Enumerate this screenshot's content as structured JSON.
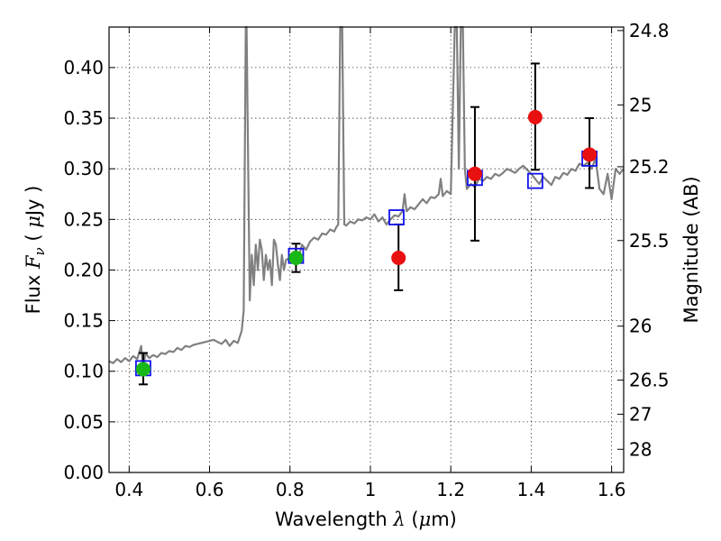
{
  "chart_data": {
    "type": "scatter",
    "xlabel": "Wavelength  λ (μm)",
    "ylabel": "Flux  Fν  ( μJy )",
    "y2label": "Magnitude (AB)",
    "xlim": [
      0.35,
      1.63
    ],
    "ylim": [
      0.0,
      0.44
    ],
    "xticks": [
      0.4,
      0.6,
      0.8,
      1.0,
      1.2,
      1.4,
      1.6
    ],
    "xtick_labels": [
      "0.4",
      "0.6",
      "0.8",
      "1",
      "1.2",
      "1.4",
      "1.6"
    ],
    "yticks": [
      0.0,
      0.05,
      0.1,
      0.15,
      0.2,
      0.25,
      0.3,
      0.35,
      0.4
    ],
    "ytick_labels": [
      "0.00",
      "0.05",
      "0.10",
      "0.15",
      "0.20",
      "0.25",
      "0.30",
      "0.35",
      "0.40"
    ],
    "y2ticks": [
      24.8,
      25.0,
      25.2,
      25.5,
      26.0,
      26.5,
      27.0,
      28.0
    ],
    "y2tick_labels": [
      "24.8",
      "25",
      "25.2",
      "25.5",
      "26",
      "26.5",
      "27",
      "28"
    ],
    "grid": true,
    "colors": {
      "spectrum": "#808080",
      "model_box": "#1010ee",
      "observed_optical": "#18b818",
      "observed_nir": "#e81010",
      "errorbar": "#000000"
    },
    "series": [
      {
        "kind": "spectrum",
        "points": [
          [
            0.35,
            0.11
          ],
          [
            0.36,
            0.108
          ],
          [
            0.37,
            0.112
          ],
          [
            0.38,
            0.109
          ],
          [
            0.39,
            0.113
          ],
          [
            0.4,
            0.11
          ],
          [
            0.41,
            0.115
          ],
          [
            0.42,
            0.112
          ],
          [
            0.43,
            0.125
          ],
          [
            0.435,
            0.098
          ],
          [
            0.44,
            0.118
          ],
          [
            0.45,
            0.113
          ],
          [
            0.46,
            0.116
          ],
          [
            0.47,
            0.114
          ],
          [
            0.48,
            0.118
          ],
          [
            0.49,
            0.117
          ],
          [
            0.5,
            0.12
          ],
          [
            0.51,
            0.119
          ],
          [
            0.52,
            0.123
          ],
          [
            0.53,
            0.121
          ],
          [
            0.54,
            0.125
          ],
          [
            0.55,
            0.124
          ],
          [
            0.56,
            0.126
          ],
          [
            0.57,
            0.127
          ],
          [
            0.58,
            0.128
          ],
          [
            0.59,
            0.129
          ],
          [
            0.6,
            0.13
          ],
          [
            0.61,
            0.131
          ],
          [
            0.62,
            0.129
          ],
          [
            0.63,
            0.127
          ],
          [
            0.64,
            0.131
          ],
          [
            0.65,
            0.125
          ],
          [
            0.66,
            0.13
          ],
          [
            0.67,
            0.128
          ],
          [
            0.68,
            0.14
          ],
          [
            0.685,
            0.16
          ],
          [
            0.69,
            0.44
          ],
          [
            0.692,
            0.44
          ],
          [
            0.7,
            0.17
          ],
          [
            0.705,
            0.215
          ],
          [
            0.71,
            0.185
          ],
          [
            0.715,
            0.225
          ],
          [
            0.72,
            0.2
          ],
          [
            0.725,
            0.23
          ],
          [
            0.73,
            0.22
          ],
          [
            0.735,
            0.19
          ],
          [
            0.74,
            0.215
          ],
          [
            0.745,
            0.2
          ],
          [
            0.75,
            0.21
          ],
          [
            0.755,
            0.185
          ],
          [
            0.76,
            0.23
          ],
          [
            0.765,
            0.225
          ],
          [
            0.77,
            0.205
          ],
          [
            0.775,
            0.19
          ],
          [
            0.78,
            0.215
          ],
          [
            0.785,
            0.2
          ],
          [
            0.79,
            0.21
          ],
          [
            0.8,
            0.212
          ],
          [
            0.81,
            0.218
          ],
          [
            0.82,
            0.21
          ],
          [
            0.83,
            0.225
          ],
          [
            0.84,
            0.22
          ],
          [
            0.85,
            0.228
          ],
          [
            0.86,
            0.232
          ],
          [
            0.87,
            0.23
          ],
          [
            0.88,
            0.236
          ],
          [
            0.89,
            0.235
          ],
          [
            0.9,
            0.24
          ],
          [
            0.91,
            0.238
          ],
          [
            0.915,
            0.242
          ],
          [
            0.92,
            0.245
          ],
          [
            0.925,
            0.44
          ],
          [
            0.93,
            0.44
          ],
          [
            0.935,
            0.245
          ],
          [
            0.94,
            0.244
          ],
          [
            0.95,
            0.248
          ],
          [
            0.96,
            0.246
          ],
          [
            0.97,
            0.25
          ],
          [
            0.98,
            0.249
          ],
          [
            0.99,
            0.252
          ],
          [
            1.0,
            0.25
          ],
          [
            1.01,
            0.255
          ],
          [
            1.02,
            0.248
          ],
          [
            1.03,
            0.252
          ],
          [
            1.04,
            0.245
          ],
          [
            1.05,
            0.25
          ],
          [
            1.06,
            0.254
          ],
          [
            1.07,
            0.253
          ],
          [
            1.08,
            0.258
          ],
          [
            1.085,
            0.275
          ],
          [
            1.09,
            0.258
          ],
          [
            1.1,
            0.262
          ],
          [
            1.11,
            0.26
          ],
          [
            1.12,
            0.265
          ],
          [
            1.13,
            0.27
          ],
          [
            1.14,
            0.266
          ],
          [
            1.15,
            0.272
          ],
          [
            1.16,
            0.271
          ],
          [
            1.17,
            0.275
          ],
          [
            1.175,
            0.29
          ],
          [
            1.18,
            0.273
          ],
          [
            1.19,
            0.278
          ],
          [
            1.2,
            0.275
          ],
          [
            1.21,
            0.44
          ],
          [
            1.215,
            0.44
          ],
          [
            1.22,
            0.3
          ],
          [
            1.225,
            0.44
          ],
          [
            1.23,
            0.44
          ],
          [
            1.235,
            0.3
          ],
          [
            1.24,
            0.28
          ],
          [
            1.25,
            0.285
          ],
          [
            1.26,
            0.282
          ],
          [
            1.27,
            0.29
          ],
          [
            1.28,
            0.288
          ],
          [
            1.29,
            0.292
          ],
          [
            1.3,
            0.29
          ],
          [
            1.31,
            0.295
          ],
          [
            1.32,
            0.293
          ],
          [
            1.33,
            0.296
          ],
          [
            1.34,
            0.3
          ],
          [
            1.35,
            0.298
          ],
          [
            1.36,
            0.296
          ],
          [
            1.37,
            0.3
          ],
          [
            1.38,
            0.303
          ],
          [
            1.39,
            0.299
          ],
          [
            1.4,
            0.295
          ],
          [
            1.41,
            0.29
          ],
          [
            1.42,
            0.285
          ],
          [
            1.43,
            0.292
          ],
          [
            1.44,
            0.288
          ],
          [
            1.45,
            0.284
          ],
          [
            1.46,
            0.292
          ],
          [
            1.47,
            0.29
          ],
          [
            1.48,
            0.296
          ],
          [
            1.49,
            0.294
          ],
          [
            1.5,
            0.3
          ],
          [
            1.51,
            0.298
          ],
          [
            1.52,
            0.305
          ],
          [
            1.53,
            0.303
          ],
          [
            1.54,
            0.306
          ],
          [
            1.55,
            0.3
          ],
          [
            1.56,
            0.31
          ],
          [
            1.57,
            0.28
          ],
          [
            1.58,
            0.275
          ],
          [
            1.59,
            0.295
          ],
          [
            1.6,
            0.27
          ],
          [
            1.61,
            0.3
          ],
          [
            1.62,
            0.295
          ],
          [
            1.63,
            0.3
          ]
        ]
      },
      {
        "kind": "model_boxes",
        "points": [
          {
            "x": 0.435,
            "y": 0.103
          },
          {
            "x": 0.815,
            "y": 0.214
          },
          {
            "x": 1.065,
            "y": 0.252
          },
          {
            "x": 1.26,
            "y": 0.291
          },
          {
            "x": 1.41,
            "y": 0.288
          },
          {
            "x": 1.545,
            "y": 0.31
          }
        ]
      },
      {
        "kind": "observed",
        "points": [
          {
            "x": 0.435,
            "y": 0.102,
            "err_low": 0.087,
            "err_high": 0.118,
            "band": "optical"
          },
          {
            "x": 0.815,
            "y": 0.212,
            "err_low": 0.198,
            "err_high": 0.226,
            "band": "optical"
          },
          {
            "x": 1.07,
            "y": 0.212,
            "err_low": 0.18,
            "err_high": 0.245,
            "band": "nir"
          },
          {
            "x": 1.26,
            "y": 0.295,
            "err_low": 0.229,
            "err_high": 0.361,
            "band": "nir"
          },
          {
            "x": 1.41,
            "y": 0.351,
            "err_low": 0.299,
            "err_high": 0.404,
            "band": "nir"
          },
          {
            "x": 1.545,
            "y": 0.314,
            "err_low": 0.281,
            "err_high": 0.35,
            "band": "nir"
          }
        ]
      }
    ]
  }
}
